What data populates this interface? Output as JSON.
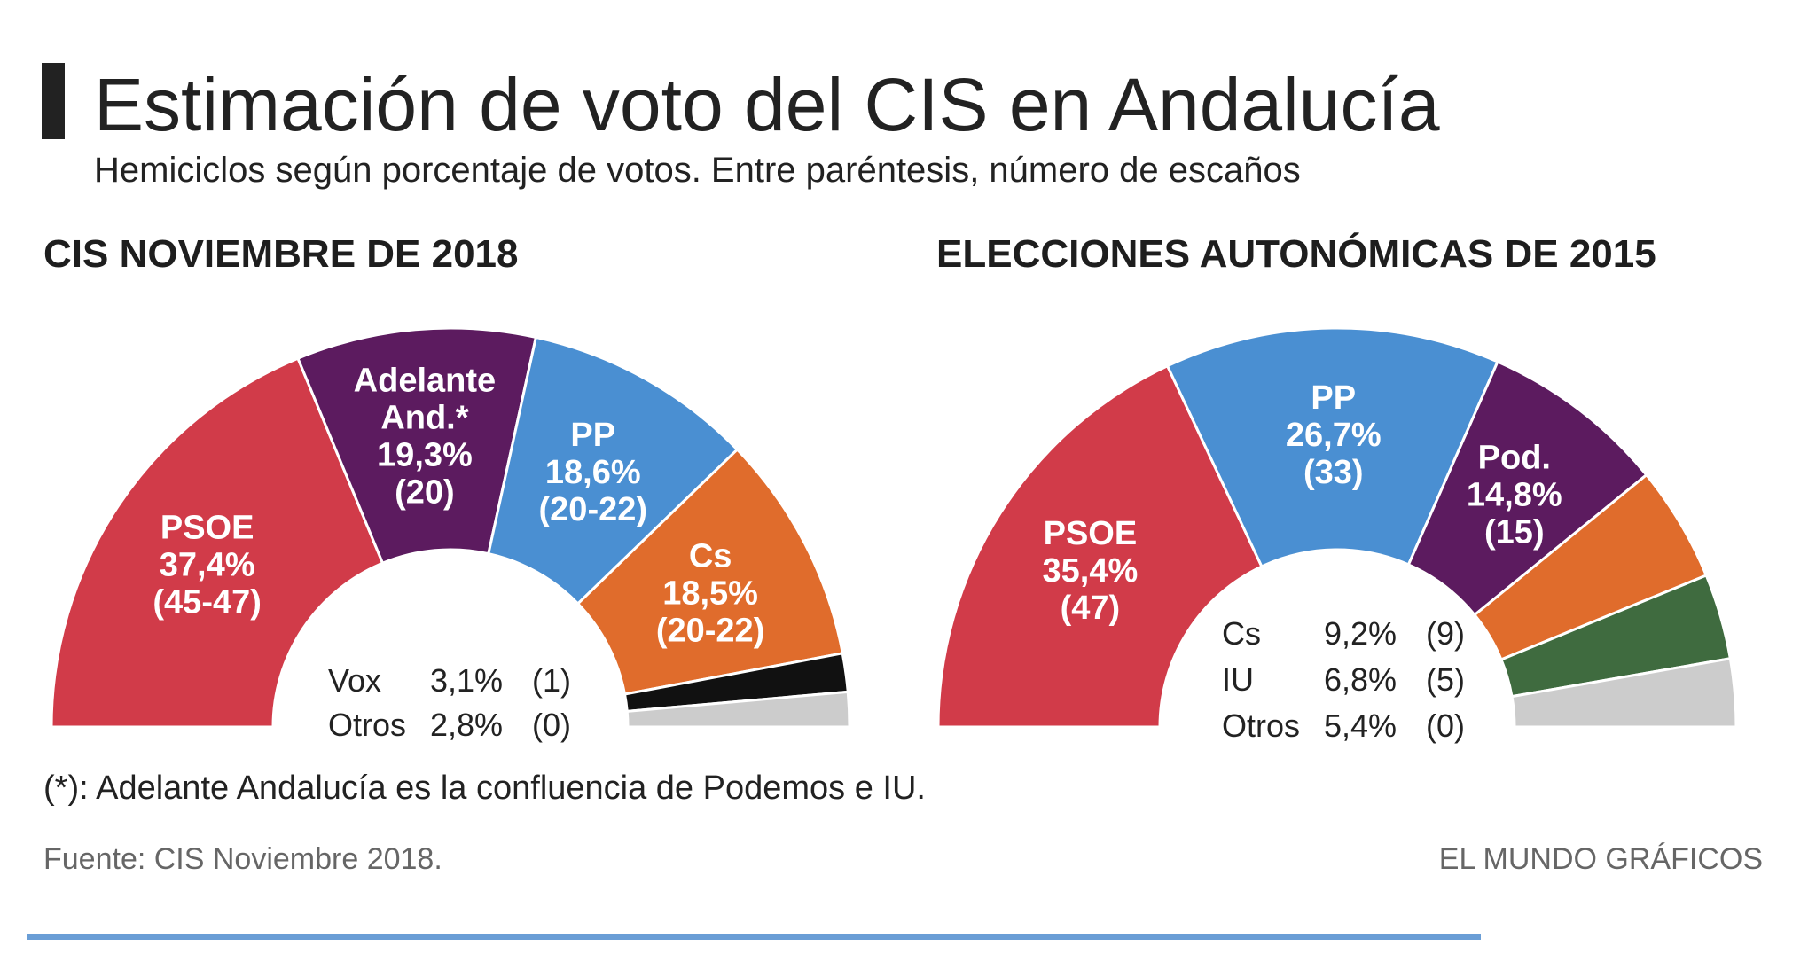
{
  "header": {
    "title": "Estimación de voto del CIS en Andalucía",
    "subtitle": "Hemiciclos según porcentaje de votos. Entre paréntesis, número de escaños"
  },
  "colors": {
    "psoe": "#d13b49",
    "adelante": "#5c1b5f",
    "podemos": "#5c1b5f",
    "pp": "#4a8fd2",
    "cs": "#e06c2c",
    "vox": "#111111",
    "iu": "#3f6b3f",
    "otros": "#cccccc"
  },
  "chart_data": [
    {
      "type": "pie",
      "shape": "hemicycle",
      "title": "CIS NOVIEMBRE DE 2018",
      "slices": [
        {
          "id": "psoe",
          "lines": [
            "PSOE",
            "37,4%",
            "(45-47)"
          ],
          "value": 37.4,
          "color": "#d13b49"
        },
        {
          "id": "adelante",
          "lines": [
            "Adelante",
            "And.*",
            "19,3%",
            "(20)"
          ],
          "value": 19.3,
          "color": "#5c1b5f"
        },
        {
          "id": "pp",
          "lines": [
            "PP",
            "18,6%",
            "(20-22)"
          ],
          "value": 18.6,
          "color": "#4a8fd2"
        },
        {
          "id": "cs",
          "lines": [
            "Cs",
            "18,5%",
            "(20-22)"
          ],
          "value": 18.5,
          "color": "#e06c2c"
        },
        {
          "id": "vox",
          "lines": [],
          "value": 3.1,
          "color": "#111111"
        },
        {
          "id": "otros",
          "lines": [],
          "value": 2.8,
          "color": "#cccccc"
        }
      ],
      "inner_legend": [
        {
          "party": "Vox",
          "pct": "3,1%",
          "seats": "(1)"
        },
        {
          "party": "Otros",
          "pct": "2,8%",
          "seats": "(0)"
        }
      ]
    },
    {
      "type": "pie",
      "shape": "hemicycle",
      "title": "ELECCIONES AUTONÓMICAS DE 2015",
      "slices": [
        {
          "id": "psoe",
          "lines": [
            "PSOE",
            "35,4%",
            "(47)"
          ],
          "value": 35.4,
          "color": "#d13b49"
        },
        {
          "id": "pp",
          "lines": [
            "PP",
            "26,7%",
            "(33)"
          ],
          "value": 26.7,
          "color": "#4a8fd2"
        },
        {
          "id": "podemos",
          "lines": [
            "Pod.",
            "14,8%",
            "(15)"
          ],
          "value": 14.8,
          "color": "#5c1b5f"
        },
        {
          "id": "cs",
          "lines": [],
          "value": 9.2,
          "color": "#e06c2c"
        },
        {
          "id": "iu",
          "lines": [],
          "value": 6.8,
          "color": "#3f6b3f"
        },
        {
          "id": "otros",
          "lines": [],
          "value": 5.4,
          "color": "#cccccc"
        }
      ],
      "inner_legend": [
        {
          "party": "Cs",
          "pct": "9,2%",
          "seats": "(9)"
        },
        {
          "party": "IU",
          "pct": "6,8%",
          "seats": "(5)"
        },
        {
          "party": "Otros",
          "pct": "5,4%",
          "seats": "(0)"
        }
      ]
    }
  ],
  "footer": {
    "note": "(*): Adelante Andalucía es la confluencia de Podemos e IU.",
    "source": "Fuente: CIS Noviembre 2018.",
    "credit": "EL MUNDO GRÁFICOS"
  }
}
